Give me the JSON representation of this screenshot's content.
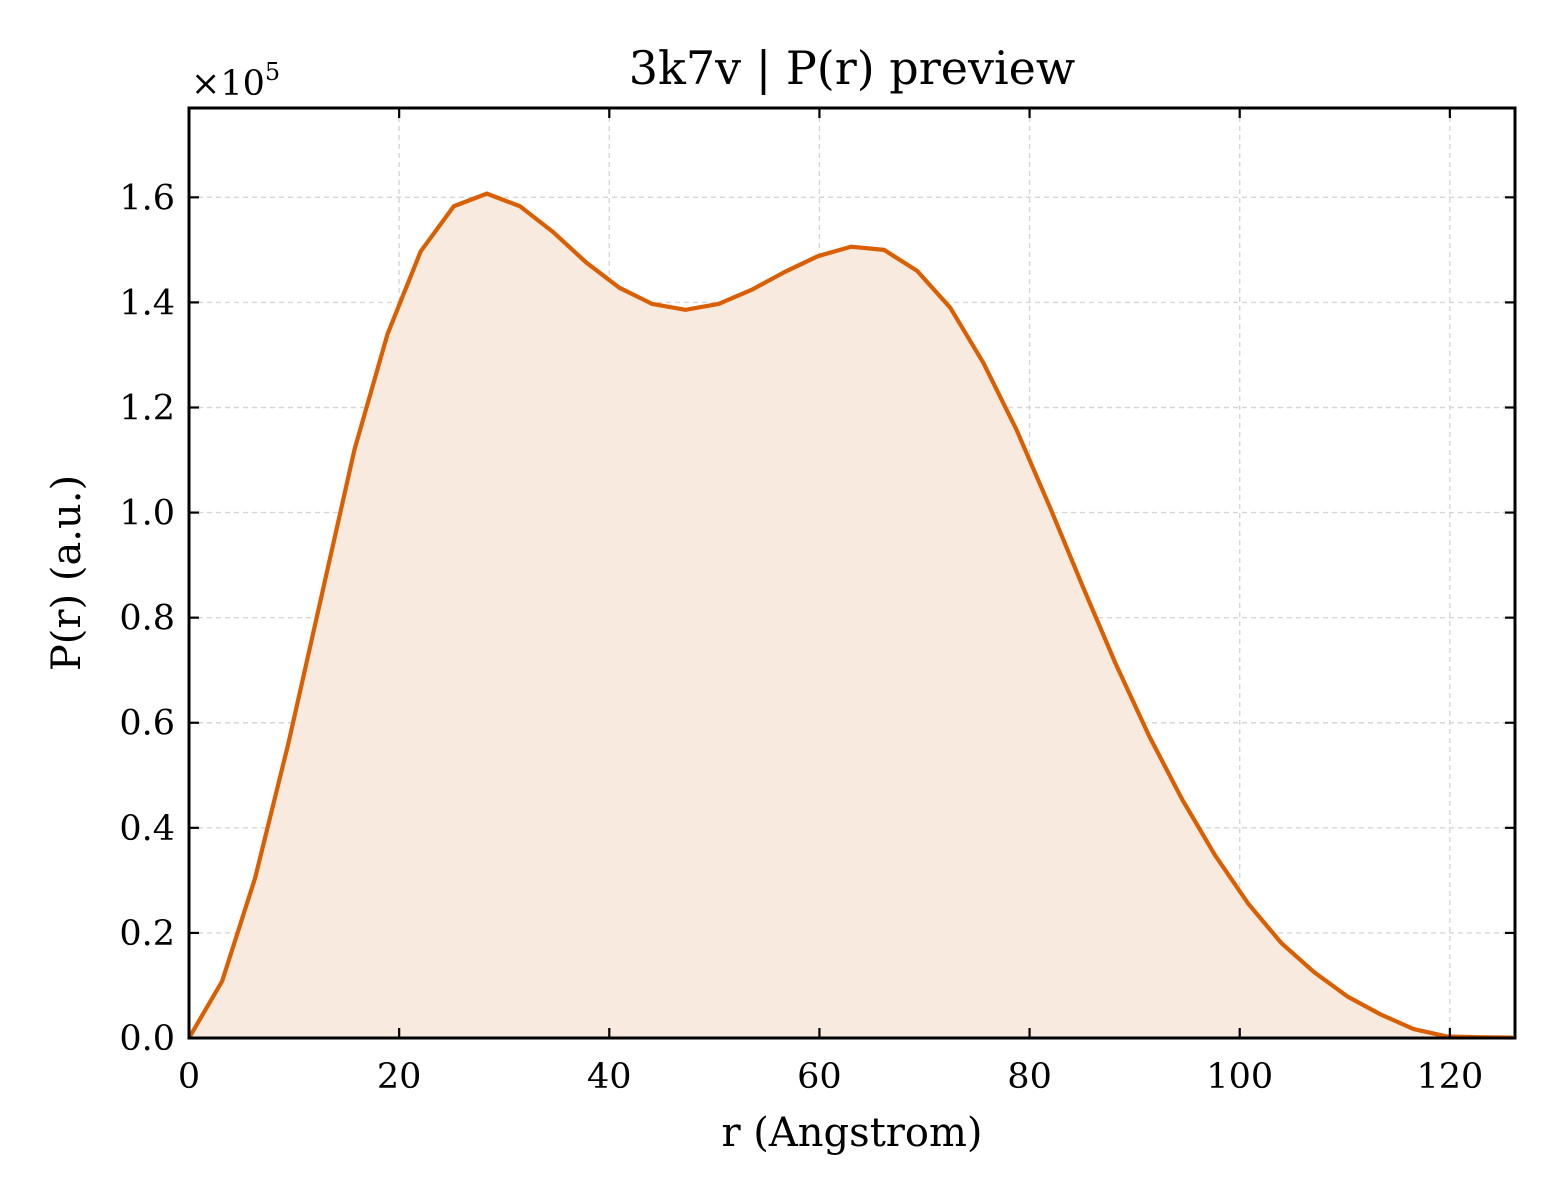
{
  "chart_data": {
    "type": "area",
    "title": "3k7v | P(r) preview",
    "xlabel": "r (Angstrom)",
    "ylabel": "P(r) (a.u.)",
    "y_offset_label": "×10",
    "y_offset_exponent": "5",
    "xlim": [
      0,
      126.2
    ],
    "ylim": [
      0,
      1.77
    ],
    "xticks": [
      0,
      20,
      40,
      60,
      80,
      100,
      120
    ],
    "yticks": [
      0.0,
      0.2,
      0.4,
      0.6,
      0.8,
      1.0,
      1.2,
      1.4,
      1.6
    ],
    "xtick_labels": [
      "0",
      "20",
      "40",
      "60",
      "80",
      "100",
      "120"
    ],
    "ytick_labels": [
      "0.0",
      "0.2",
      "0.4",
      "0.6",
      "0.8",
      "1.0",
      "1.2",
      "1.4",
      "1.6"
    ],
    "grid": true,
    "series": [
      {
        "color": "#d95f02",
        "fill_color": "#f8eade",
        "x": [
          0,
          3.15,
          6.3,
          9.45,
          12.6,
          15.75,
          18.9,
          22.05,
          25.2,
          28.35,
          31.5,
          34.65,
          37.8,
          40.95,
          44.1,
          47.25,
          50.4,
          53.55,
          56.7,
          59.85,
          63.0,
          66.15,
          69.3,
          72.45,
          75.6,
          78.75,
          81.9,
          85.05,
          88.2,
          91.35,
          94.5,
          97.65,
          100.8,
          103.95,
          107.1,
          110.25,
          113.4,
          116.55,
          119.7,
          122.85,
          126.0
        ],
        "y": [
          0.0,
          0.108,
          0.305,
          0.56,
          0.84,
          1.12,
          1.34,
          1.497,
          1.583,
          1.607,
          1.583,
          1.534,
          1.476,
          1.428,
          1.397,
          1.386,
          1.397,
          1.424,
          1.458,
          1.488,
          1.506,
          1.5,
          1.46,
          1.39,
          1.285,
          1.158,
          1.012,
          0.86,
          0.712,
          0.576,
          0.455,
          0.348,
          0.256,
          0.181,
          0.125,
          0.079,
          0.045,
          0.017,
          0.003,
          0.0015,
          0.0008
        ]
      }
    ]
  }
}
